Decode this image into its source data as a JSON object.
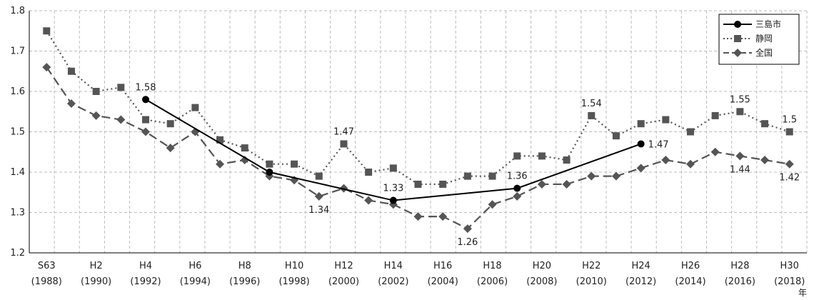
{
  "chart_data": {
    "type": "line",
    "title": "",
    "xlabel": "",
    "ylabel": "",
    "x_unit": "年",
    "ylim": [
      1.2,
      1.8
    ],
    "yticks": [
      "1.2",
      "1.3",
      "1.4",
      "1.5",
      "1.6",
      "1.7",
      "1.8"
    ],
    "grid": true,
    "legend_position": "top-right",
    "x_years": [
      1988,
      1989,
      1990,
      1991,
      1992,
      1993,
      1994,
      1995,
      1996,
      1997,
      1998,
      1999,
      2000,
      2001,
      2002,
      2003,
      2004,
      2005,
      2006,
      2007,
      2008,
      2009,
      2010,
      2011,
      2012,
      2013,
      2014,
      2015,
      2016,
      2017,
      2018
    ],
    "xticks": [
      {
        "era": "S63",
        "year": "(1988)"
      },
      {
        "era": "H2",
        "year": "(1990)"
      },
      {
        "era": "H4",
        "year": "(1992)"
      },
      {
        "era": "H6",
        "year": "(1994)"
      },
      {
        "era": "H8",
        "year": "(1996)"
      },
      {
        "era": "H10",
        "year": "(1998)"
      },
      {
        "era": "H12",
        "year": "(2000)"
      },
      {
        "era": "H14",
        "year": "(2002)"
      },
      {
        "era": "H16",
        "year": "(2004)"
      },
      {
        "era": "H18",
        "year": "(2006)"
      },
      {
        "era": "H20",
        "year": "(2008)"
      },
      {
        "era": "H22",
        "year": "(2010)"
      },
      {
        "era": "H24",
        "year": "(2012)"
      },
      {
        "era": "H26",
        "year": "(2014)"
      },
      {
        "era": "H28",
        "year": "(2016)"
      },
      {
        "era": "H30",
        "year": "(2018)"
      }
    ],
    "series": [
      {
        "name": "三島市",
        "style": "solid",
        "marker": "circle",
        "color": "#000000",
        "points": [
          [
            1992,
            1.58
          ],
          [
            1997,
            1.4
          ],
          [
            2002,
            1.33
          ],
          [
            2007,
            1.36
          ],
          [
            2012,
            1.47
          ]
        ]
      },
      {
        "name": "静岡",
        "style": "dotted",
        "marker": "square",
        "color": "#555555",
        "points": [
          [
            1988,
            1.75
          ],
          [
            1989,
            1.65
          ],
          [
            1990,
            1.6
          ],
          [
            1991,
            1.61
          ],
          [
            1992,
            1.53
          ],
          [
            1993,
            1.52
          ],
          [
            1994,
            1.56
          ],
          [
            1995,
            1.48
          ],
          [
            1996,
            1.46
          ],
          [
            1997,
            1.42
          ],
          [
            1998,
            1.42
          ],
          [
            1999,
            1.39
          ],
          [
            2000,
            1.47
          ],
          [
            2001,
            1.4
          ],
          [
            2002,
            1.41
          ],
          [
            2003,
            1.37
          ],
          [
            2004,
            1.37
          ],
          [
            2005,
            1.39
          ],
          [
            2006,
            1.39
          ],
          [
            2007,
            1.44
          ],
          [
            2008,
            1.44
          ],
          [
            2009,
            1.43
          ],
          [
            2010,
            1.54
          ],
          [
            2011,
            1.49
          ],
          [
            2012,
            1.52
          ],
          [
            2013,
            1.53
          ],
          [
            2014,
            1.5
          ],
          [
            2015,
            1.54
          ],
          [
            2016,
            1.55
          ],
          [
            2017,
            1.52
          ],
          [
            2018,
            1.5
          ]
        ]
      },
      {
        "name": "全国",
        "style": "dashed",
        "marker": "diamond",
        "color": "#555555",
        "points": [
          [
            1988,
            1.66
          ],
          [
            1989,
            1.57
          ],
          [
            1990,
            1.54
          ],
          [
            1991,
            1.53
          ],
          [
            1992,
            1.5
          ],
          [
            1993,
            1.46
          ],
          [
            1994,
            1.5
          ],
          [
            1995,
            1.42
          ],
          [
            1996,
            1.43
          ],
          [
            1997,
            1.39
          ],
          [
            1998,
            1.38
          ],
          [
            1999,
            1.34
          ],
          [
            2000,
            1.36
          ],
          [
            2001,
            1.33
          ],
          [
            2002,
            1.32
          ],
          [
            2003,
            1.29
          ],
          [
            2004,
            1.29
          ],
          [
            2005,
            1.26
          ],
          [
            2006,
            1.32
          ],
          [
            2007,
            1.34
          ],
          [
            2008,
            1.37
          ],
          [
            2009,
            1.37
          ],
          [
            2010,
            1.39
          ],
          [
            2011,
            1.39
          ],
          [
            2012,
            1.41
          ],
          [
            2013,
            1.43
          ],
          [
            2014,
            1.42
          ],
          [
            2015,
            1.45
          ],
          [
            2016,
            1.44
          ],
          [
            2017,
            1.43
          ],
          [
            2018,
            1.42
          ]
        ]
      }
    ],
    "annotations": [
      {
        "series": "三島市",
        "x": 1992,
        "y": 1.58,
        "text": "1.58",
        "pos": "above"
      },
      {
        "series": "三島市",
        "x": 2002,
        "y": 1.33,
        "text": "1.33",
        "pos": "above"
      },
      {
        "series": "三島市",
        "x": 2007,
        "y": 1.36,
        "text": "1.36",
        "pos": "above"
      },
      {
        "series": "三島市",
        "x": 2012,
        "y": 1.47,
        "text": "1.47",
        "pos": "right"
      },
      {
        "series": "静岡",
        "x": 2000,
        "y": 1.47,
        "text": "1.47",
        "pos": "above"
      },
      {
        "series": "静岡",
        "x": 2010,
        "y": 1.54,
        "text": "1.54",
        "pos": "above"
      },
      {
        "series": "静岡",
        "x": 2016,
        "y": 1.55,
        "text": "1.55",
        "pos": "above"
      },
      {
        "series": "静岡",
        "x": 2018,
        "y": 1.5,
        "text": "1.5",
        "pos": "above"
      },
      {
        "series": "全国",
        "x": 1999,
        "y": 1.34,
        "text": "1.34",
        "pos": "below"
      },
      {
        "series": "全国",
        "x": 2005,
        "y": 1.26,
        "text": "1.26",
        "pos": "below"
      },
      {
        "series": "全国",
        "x": 2016,
        "y": 1.44,
        "text": "1.44",
        "pos": "below"
      },
      {
        "series": "全国",
        "x": 2018,
        "y": 1.42,
        "text": "1.42",
        "pos": "below"
      }
    ]
  }
}
